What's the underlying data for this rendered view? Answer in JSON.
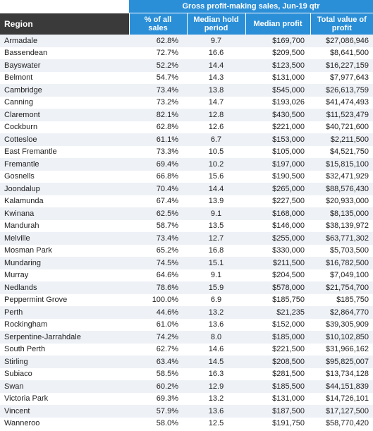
{
  "table": {
    "title": "Gross profit-making sales, Jun-19 qtr",
    "columns": [
      "Region",
      "% of all sales",
      "Median hold period",
      "Median profit",
      "Total value of profit"
    ],
    "rows": [
      [
        "Armadale",
        "62.8%",
        "9.7",
        "$169,700",
        "$27,086,946"
      ],
      [
        "Bassendean",
        "72.7%",
        "16.6",
        "$209,500",
        "$8,641,500"
      ],
      [
        "Bayswater",
        "52.2%",
        "14.4",
        "$123,500",
        "$16,227,159"
      ],
      [
        "Belmont",
        "54.7%",
        "14.3",
        "$131,000",
        "$7,977,643"
      ],
      [
        "Cambridge",
        "73.4%",
        "13.8",
        "$545,000",
        "$26,613,759"
      ],
      [
        "Canning",
        "73.2%",
        "14.7",
        "$193,026",
        "$41,474,493"
      ],
      [
        "Claremont",
        "82.1%",
        "12.8",
        "$430,500",
        "$11,523,479"
      ],
      [
        "Cockburn",
        "62.8%",
        "12.6",
        "$221,000",
        "$40,721,600"
      ],
      [
        "Cottesloe",
        "61.1%",
        "6.7",
        "$153,000",
        "$2,211,500"
      ],
      [
        "East Fremantle",
        "73.3%",
        "10.5",
        "$105,000",
        "$4,521,750"
      ],
      [
        "Fremantle",
        "69.4%",
        "10.2",
        "$197,000",
        "$15,815,100"
      ],
      [
        "Gosnells",
        "66.8%",
        "15.6",
        "$190,500",
        "$32,471,929"
      ],
      [
        "Joondalup",
        "70.4%",
        "14.4",
        "$265,000",
        "$88,576,430"
      ],
      [
        "Kalamunda",
        "67.4%",
        "13.9",
        "$227,500",
        "$20,933,000"
      ],
      [
        "Kwinana",
        "62.5%",
        "9.1",
        "$168,000",
        "$8,135,000"
      ],
      [
        "Mandurah",
        "58.7%",
        "13.5",
        "$146,000",
        "$38,139,972"
      ],
      [
        "Melville",
        "73.4%",
        "12.7",
        "$255,000",
        "$63,771,302"
      ],
      [
        "Mosman Park",
        "65.2%",
        "16.8",
        "$330,000",
        "$5,703,500"
      ],
      [
        "Mundaring",
        "74.5%",
        "15.1",
        "$211,500",
        "$16,782,500"
      ],
      [
        "Murray",
        "64.6%",
        "9.1",
        "$204,500",
        "$7,049,100"
      ],
      [
        "Nedlands",
        "78.6%",
        "15.9",
        "$578,000",
        "$21,754,700"
      ],
      [
        "Peppermint Grove",
        "100.0%",
        "6.9",
        "$185,750",
        "$185,750"
      ],
      [
        "Perth",
        "44.6%",
        "13.2",
        "$21,235",
        "$2,864,770"
      ],
      [
        "Rockingham",
        "61.0%",
        "13.6",
        "$152,000",
        "$39,305,909"
      ],
      [
        "Serpentine-Jarrahdale",
        "74.2%",
        "8.0",
        "$185,000",
        "$10,102,850"
      ],
      [
        "South Perth",
        "62.7%",
        "14.6",
        "$221,500",
        "$31,966,162"
      ],
      [
        "Stirling",
        "63.4%",
        "14.5",
        "$208,500",
        "$95,825,007"
      ],
      [
        "Subiaco",
        "58.5%",
        "16.3",
        "$281,500",
        "$13,734,128"
      ],
      [
        "Swan",
        "60.2%",
        "12.9",
        "$185,500",
        "$44,151,839"
      ],
      [
        "Victoria Park",
        "69.3%",
        "13.2",
        "$131,000",
        "$14,726,101"
      ],
      [
        "Vincent",
        "57.9%",
        "13.6",
        "$187,500",
        "$17,127,500"
      ],
      [
        "Wanneroo",
        "58.0%",
        "12.5",
        "$191,750",
        "$58,770,420"
      ]
    ]
  }
}
